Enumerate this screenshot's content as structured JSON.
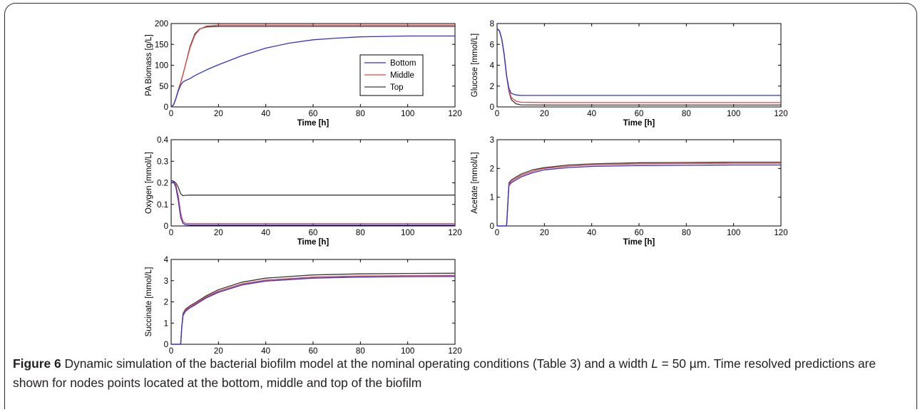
{
  "figure": {
    "label": "Figure 6",
    "caption_part1": " Dynamic simulation of the bacterial biofilm model at the nominal operating conditions (Table 3) and a width ",
    "caption_var": "L",
    "caption_part2": " = 50 µm. Time resolved predictions are shown for nodes points located at the bottom, middle and top of the biofilm"
  },
  "colors": {
    "Bottom": "#3333cc",
    "Middle": "#e04848",
    "Top": "#3a3a3a"
  },
  "chart_data": [
    {
      "type": "line",
      "title": "",
      "xlabel": "Time [h]",
      "ylabel": "PA Biomass [g/L]",
      "xlim": [
        0,
        120
      ],
      "ylim": [
        0,
        200
      ],
      "xticks": [
        "0",
        "20",
        "40",
        "60",
        "80",
        "100",
        "120"
      ],
      "yticks": [
        "0",
        "50",
        "100",
        "150",
        "200"
      ],
      "legend": {
        "position": "right-center",
        "entries": [
          "Bottom",
          "Middle",
          "Top"
        ]
      },
      "series": [
        {
          "name": "Bottom",
          "x": [
            0,
            1,
            2,
            3,
            4,
            5,
            6,
            8,
            10,
            15,
            20,
            30,
            40,
            50,
            60,
            70,
            80,
            90,
            100,
            110,
            120
          ],
          "y": [
            0,
            5,
            20,
            38,
            52,
            60,
            63,
            68,
            75,
            89,
            101,
            123,
            141,
            153,
            161,
            165,
            168,
            169,
            170,
            170,
            170
          ]
        },
        {
          "name": "Middle",
          "x": [
            0,
            1,
            2,
            3,
            4,
            5,
            6,
            8,
            10,
            12,
            15,
            20,
            40,
            60,
            80,
            100,
            120
          ],
          "y": [
            0,
            5,
            20,
            40,
            58,
            78,
            100,
            142,
            172,
            186,
            194,
            196,
            196,
            196,
            196,
            196,
            196
          ]
        },
        {
          "name": "Top",
          "x": [
            0,
            1,
            2,
            3,
            4,
            5,
            6,
            8,
            10,
            12,
            15,
            20,
            40,
            60,
            80,
            100,
            120
          ],
          "y": [
            0,
            5,
            20,
            40,
            58,
            78,
            100,
            145,
            175,
            187,
            192,
            193,
            193,
            193,
            193,
            193,
            193
          ]
        }
      ]
    },
    {
      "type": "line",
      "title": "",
      "xlabel": "Time [h]",
      "ylabel": "Glucose [mmol/L]",
      "xlim": [
        0,
        120
      ],
      "ylim": [
        0,
        8
      ],
      "xticks": [
        "0",
        "20",
        "40",
        "60",
        "80",
        "100",
        "120"
      ],
      "yticks": [
        "0",
        "2",
        "4",
        "6",
        "8"
      ],
      "series": [
        {
          "name": "Bottom",
          "x": [
            0,
            1,
            2,
            3,
            4,
            5,
            6,
            8,
            10,
            20,
            40,
            60,
            80,
            100,
            120
          ],
          "y": [
            7.5,
            7.3,
            6.5,
            5.0,
            3.0,
            1.8,
            1.3,
            1.15,
            1.1,
            1.1,
            1.1,
            1.1,
            1.1,
            1.1,
            1.1
          ]
        },
        {
          "name": "Middle",
          "x": [
            0,
            1,
            2,
            3,
            4,
            5,
            6,
            8,
            10,
            20,
            40,
            60,
            80,
            100,
            120
          ],
          "y": [
            7.5,
            7.3,
            6.5,
            5.0,
            3.0,
            1.6,
            0.9,
            0.55,
            0.45,
            0.42,
            0.42,
            0.42,
            0.42,
            0.42,
            0.42
          ]
        },
        {
          "name": "Top",
          "x": [
            0,
            1,
            2,
            3,
            4,
            5,
            6,
            8,
            10,
            20,
            40,
            60,
            80,
            100,
            120
          ],
          "y": [
            7.5,
            7.3,
            6.5,
            5.0,
            3.0,
            1.5,
            0.7,
            0.3,
            0.2,
            0.18,
            0.18,
            0.18,
            0.18,
            0.18,
            0.18
          ]
        }
      ]
    },
    {
      "type": "line",
      "title": "",
      "xlabel": "Time [h]",
      "ylabel": "Oxygen [mmol/L]",
      "xlim": [
        0,
        120
      ],
      "ylim": [
        0,
        0.4
      ],
      "xticks": [
        "0",
        "20",
        "40",
        "60",
        "80",
        "100",
        "120"
      ],
      "yticks": [
        "0",
        "0.1",
        "0.2",
        "0.3",
        "0.4"
      ],
      "series": [
        {
          "name": "Bottom",
          "x": [
            0,
            1,
            2,
            3,
            4,
            5,
            6,
            8,
            10,
            20,
            60,
            120
          ],
          "y": [
            0.21,
            0.205,
            0.18,
            0.12,
            0.04,
            0.012,
            0.006,
            0.004,
            0.004,
            0.004,
            0.004,
            0.004
          ]
        },
        {
          "name": "Middle",
          "x": [
            0,
            1,
            2,
            3,
            4,
            5,
            6,
            8,
            10,
            20,
            60,
            120
          ],
          "y": [
            0.21,
            0.205,
            0.19,
            0.14,
            0.06,
            0.02,
            0.012,
            0.011,
            0.011,
            0.011,
            0.011,
            0.011
          ]
        },
        {
          "name": "Top",
          "x": [
            0,
            1,
            2,
            3,
            4,
            5,
            6,
            8,
            10,
            20,
            60,
            120
          ],
          "y": [
            0.21,
            0.208,
            0.2,
            0.18,
            0.15,
            0.14,
            0.142,
            0.143,
            0.143,
            0.143,
            0.143,
            0.143
          ]
        }
      ]
    },
    {
      "type": "line",
      "title": "",
      "xlabel": "Time [h]",
      "ylabel": "Acetate [mmol/L]",
      "xlim": [
        0,
        120
      ],
      "ylim": [
        0,
        3
      ],
      "xticks": [
        "0",
        "20",
        "40",
        "60",
        "80",
        "100",
        "120"
      ],
      "yticks": [
        "0",
        "1",
        "2",
        "3"
      ],
      "series": [
        {
          "name": "Bottom",
          "x": [
            0,
            4,
            4.5,
            5,
            6,
            8,
            10,
            15,
            20,
            30,
            40,
            60,
            80,
            100,
            120
          ],
          "y": [
            0,
            0,
            0.7,
            1.4,
            1.5,
            1.6,
            1.7,
            1.85,
            1.95,
            2.03,
            2.07,
            2.1,
            2.11,
            2.12,
            2.12
          ]
        },
        {
          "name": "Middle",
          "x": [
            0,
            4,
            4.5,
            5,
            6,
            8,
            10,
            15,
            20,
            30,
            40,
            60,
            80,
            100,
            120
          ],
          "y": [
            0,
            0,
            0.7,
            1.45,
            1.55,
            1.65,
            1.75,
            1.9,
            2.0,
            2.08,
            2.12,
            2.16,
            2.17,
            2.18,
            2.18
          ]
        },
        {
          "name": "Top",
          "x": [
            0,
            4,
            4.5,
            5,
            6,
            8,
            10,
            15,
            20,
            30,
            40,
            60,
            80,
            100,
            120
          ],
          "y": [
            0,
            0,
            0.7,
            1.5,
            1.6,
            1.7,
            1.8,
            1.95,
            2.03,
            2.12,
            2.16,
            2.2,
            2.21,
            2.22,
            2.22
          ]
        }
      ]
    },
    {
      "type": "line",
      "title": "",
      "xlabel": "Time [h]",
      "ylabel": "Succinate [mmol/L]",
      "xlim": [
        0,
        120
      ],
      "ylim": [
        0,
        4
      ],
      "xticks": [
        "0",
        "20",
        "40",
        "60",
        "80",
        "100",
        "120"
      ],
      "yticks": [
        "0",
        "1",
        "2",
        "3",
        "4"
      ],
      "series": [
        {
          "name": "Bottom",
          "x": [
            0,
            4,
            4.5,
            5,
            6,
            8,
            10,
            15,
            20,
            30,
            40,
            60,
            80,
            100,
            120
          ],
          "y": [
            0,
            0,
            0.8,
            1.35,
            1.55,
            1.72,
            1.85,
            2.2,
            2.45,
            2.8,
            2.98,
            3.12,
            3.17,
            3.19,
            3.2
          ]
        },
        {
          "name": "Middle",
          "x": [
            0,
            4,
            4.5,
            5,
            6,
            8,
            10,
            15,
            20,
            30,
            40,
            60,
            80,
            100,
            120
          ],
          "y": [
            0,
            0,
            0.8,
            1.4,
            1.6,
            1.78,
            1.9,
            2.25,
            2.5,
            2.85,
            3.03,
            3.17,
            3.22,
            3.24,
            3.25
          ]
        },
        {
          "name": "Top",
          "x": [
            0,
            4,
            4.5,
            5,
            6,
            8,
            10,
            15,
            20,
            30,
            40,
            60,
            80,
            100,
            120
          ],
          "y": [
            0,
            0,
            0.8,
            1.45,
            1.65,
            1.82,
            1.95,
            2.3,
            2.57,
            2.93,
            3.12,
            3.27,
            3.32,
            3.34,
            3.35
          ]
        }
      ]
    }
  ]
}
